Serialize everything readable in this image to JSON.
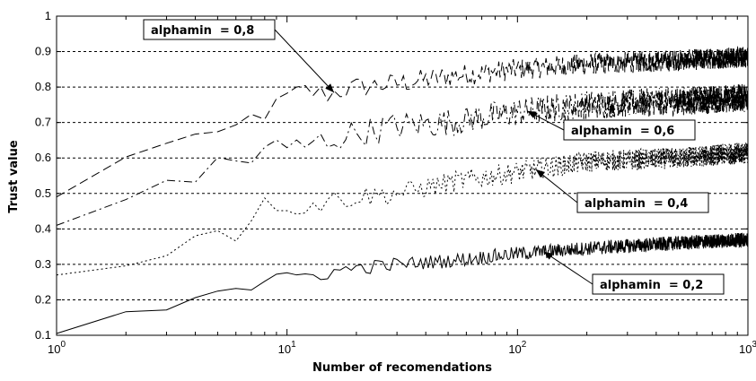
{
  "chart_data": {
    "type": "line",
    "title": "",
    "xlabel": "Number of recomendations",
    "ylabel": "Trust value",
    "xscale": "log",
    "xlim": [
      1,
      1000
    ],
    "ylim": [
      0.1,
      1
    ],
    "grid": "horizontal dashed",
    "x_tick_labels": [
      {
        "base": "10",
        "exp": "0"
      },
      {
        "base": "10",
        "exp": "1"
      },
      {
        "base": "10",
        "exp": "2"
      },
      {
        "base": "10",
        "exp": "3"
      }
    ],
    "y_tick_labels": [
      "0.1",
      "0.2",
      "0.3",
      "0.4",
      "0.5",
      "0.6",
      "0.7",
      "0.8",
      "0.9",
      "1"
    ],
    "series": [
      {
        "label": "alphamin  = 0,8",
        "style": "dash",
        "noise": 0.03,
        "x": [
          1,
          2,
          3,
          4,
          5,
          6,
          7,
          8,
          10,
          12,
          15,
          20,
          30,
          50,
          100,
          200,
          500,
          1000
        ],
        "values": [
          0.49,
          0.6,
          0.645,
          0.665,
          0.665,
          0.69,
          0.72,
          0.715,
          0.77,
          0.79,
          0.78,
          0.8,
          0.81,
          0.83,
          0.85,
          0.865,
          0.875,
          0.885
        ]
      },
      {
        "label": "alphamin  = 0,6",
        "style": "dashdot",
        "noise": 0.04,
        "x": [
          1,
          2,
          3,
          4,
          5,
          6,
          7,
          8,
          10,
          12,
          15,
          20,
          30,
          50,
          100,
          200,
          500,
          1000
        ],
        "values": [
          0.41,
          0.49,
          0.54,
          0.525,
          0.6,
          0.59,
          0.59,
          0.63,
          0.62,
          0.635,
          0.65,
          0.67,
          0.69,
          0.7,
          0.73,
          0.75,
          0.76,
          0.77
        ]
      },
      {
        "label": "alphamin  = 0,4",
        "style": "dot",
        "noise": 0.03,
        "x": [
          1,
          2,
          3,
          4,
          5,
          6,
          7,
          8,
          10,
          12,
          15,
          20,
          30,
          50,
          100,
          200,
          500,
          1000
        ],
        "values": [
          0.27,
          0.295,
          0.33,
          0.38,
          0.4,
          0.37,
          0.43,
          0.48,
          0.47,
          0.46,
          0.48,
          0.49,
          0.5,
          0.53,
          0.56,
          0.59,
          0.6,
          0.615
        ]
      },
      {
        "label": "alphamin  = 0,2",
        "style": "solid",
        "noise": 0.02,
        "x": [
          1,
          2,
          3,
          4,
          5,
          6,
          7,
          8,
          10,
          12,
          15,
          20,
          30,
          50,
          100,
          200,
          500,
          1000
        ],
        "values": [
          0.105,
          0.17,
          0.175,
          0.21,
          0.225,
          0.235,
          0.23,
          0.25,
          0.26,
          0.27,
          0.275,
          0.29,
          0.3,
          0.31,
          0.33,
          0.345,
          0.36,
          0.37
        ]
      }
    ],
    "annotations": [
      {
        "text": "alphamin  = 0,8",
        "series": 0,
        "arrow_x": 16
      },
      {
        "text": "alphamin  = 0,6",
        "series": 1,
        "arrow_x": 110
      },
      {
        "text": "alphamin  = 0,4",
        "series": 2,
        "arrow_x": 120
      },
      {
        "text": "alphamin  = 0,2",
        "series": 3,
        "arrow_x": 130
      }
    ]
  }
}
